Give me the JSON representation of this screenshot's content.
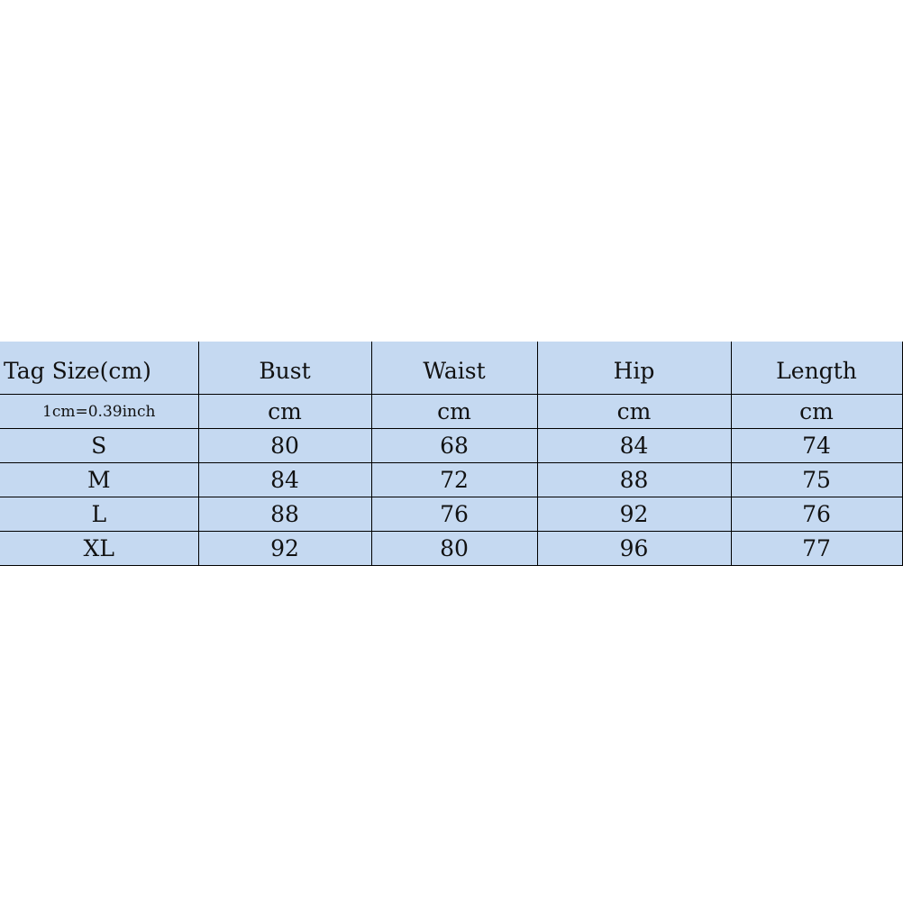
{
  "table": {
    "headers": [
      "Tag Size(cm)",
      "Bust",
      "Waist",
      "Hip",
      "Length"
    ],
    "unit_row": [
      "1cm=0.39inch",
      "cm",
      "cm",
      "cm",
      "cm"
    ],
    "rows": [
      [
        "S",
        "80",
        "68",
        "84",
        "74"
      ],
      [
        "M",
        "84",
        "72",
        "88",
        "75"
      ],
      [
        "L",
        "88",
        "76",
        "92",
        "76"
      ],
      [
        "XL",
        "92",
        "80",
        "96",
        "77"
      ]
    ]
  },
  "colors": {
    "cell_background": "#c5d9f1",
    "border": "#000000"
  }
}
